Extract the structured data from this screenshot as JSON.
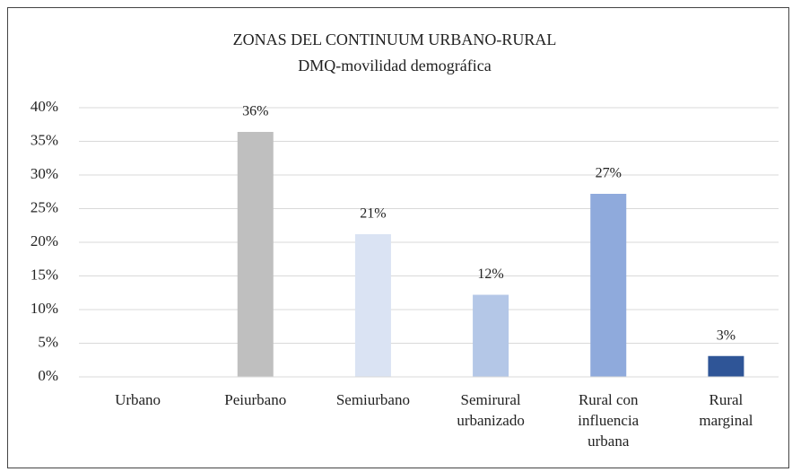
{
  "chart_data": {
    "type": "bar",
    "title": "ZONAS DEL CONTINUUM URBANO-RURAL",
    "subtitle": "DMQ-movilidad demográfica",
    "categories": [
      "Urbano",
      "Peiurbano",
      "Semiurbano",
      "Semirural urbanizado",
      "Rural con influencia urbana",
      "Rural marginal"
    ],
    "values": [
      0,
      36.4,
      21.2,
      12.2,
      27.2,
      3.1
    ],
    "value_labels": [
      null,
      "36%",
      "21%",
      "12%",
      "27%",
      "3%"
    ],
    "colors": [
      "#a5a5a5",
      "#bfbfbf",
      "#dae3f3",
      "#b4c7e7",
      "#8faadc",
      "#2f5597"
    ],
    "ylim": [
      0,
      40
    ],
    "yticks": [
      {
        "value": 0,
        "label": "0%"
      },
      {
        "value": 5,
        "label": "5%"
      },
      {
        "value": 10,
        "label": "10%"
      },
      {
        "value": 15,
        "label": "15%"
      },
      {
        "value": 20,
        "label": "20%"
      },
      {
        "value": 25,
        "label": "25%"
      },
      {
        "value": 30,
        "label": "30%"
      },
      {
        "value": 35,
        "label": "35%"
      },
      {
        "value": 40,
        "label": "40%"
      }
    ],
    "grid": true
  }
}
